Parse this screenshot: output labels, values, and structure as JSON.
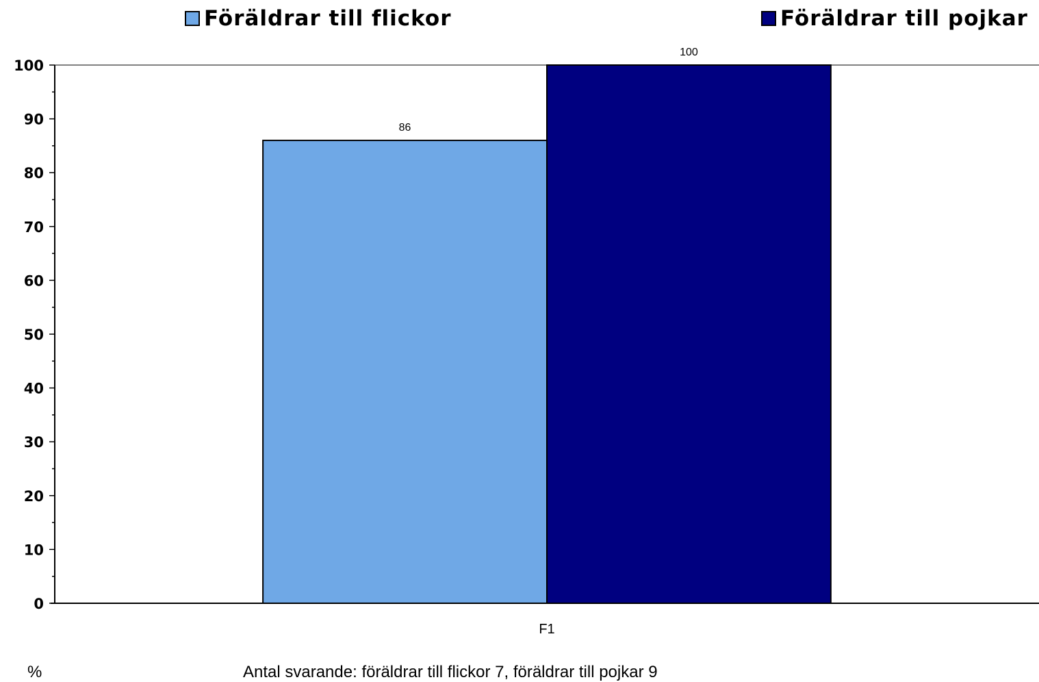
{
  "chart_data": {
    "type": "bar",
    "categories": [
      "F1"
    ],
    "series": [
      {
        "name": "Föräldrar till flickor",
        "values": [
          86
        ],
        "color": "#6FA8E6"
      },
      {
        "name": "Föräldrar till pojkar",
        "values": [
          100
        ],
        "color": "#000080"
      }
    ],
    "ylim": [
      0,
      100
    ],
    "yticks": [
      "0",
      "10",
      "20",
      "30",
      "40",
      "50",
      "60",
      "70",
      "80",
      "90",
      "100"
    ],
    "data_labels": [
      "86",
      "100"
    ],
    "ylabel": "%",
    "legend_position": "top",
    "grid": false
  },
  "footer": {
    "unit": "%",
    "note": "Antal svarande: föräldrar till flickor 7, föräldrar till pojkar 9"
  }
}
